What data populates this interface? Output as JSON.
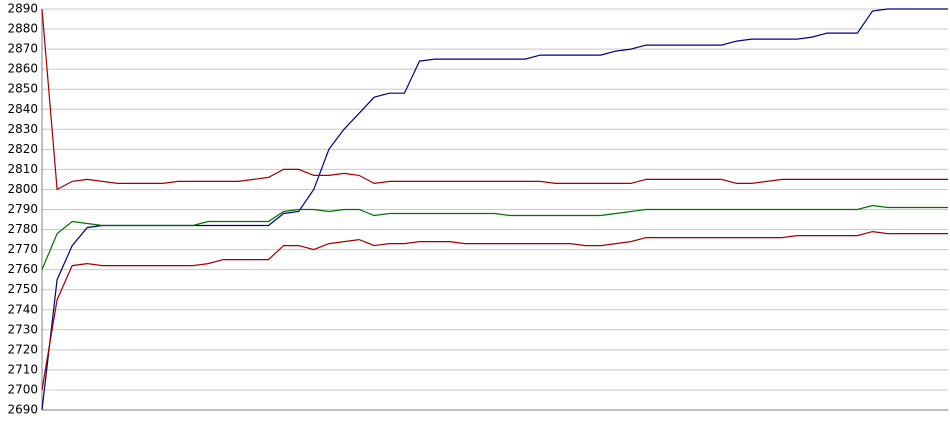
{
  "chart_data": {
    "type": "line",
    "categories": [
      null,
      null,
      null,
      null,
      null,
      null,
      null,
      null,
      null,
      null,
      null,
      null,
      null,
      null,
      null,
      null,
      null,
      null,
      null,
      null,
      null,
      null,
      null,
      null,
      null,
      null,
      null,
      null,
      null,
      null,
      null,
      null,
      null,
      null,
      null,
      null,
      null,
      null,
      null,
      null,
      null,
      null,
      null,
      null,
      null,
      null,
      null,
      null,
      null,
      null,
      null,
      null,
      null,
      null,
      null,
      null,
      null,
      null,
      null,
      null,
      null
    ],
    "series": [
      {
        "color": "#000080",
        "values": [
          2690,
          2755,
          2772,
          2781,
          2782,
          2782,
          2782,
          2782,
          2782,
          2782,
          2782,
          2782,
          2782,
          2782,
          2782,
          2782,
          2788,
          2789,
          2800,
          2820,
          2830,
          2838,
          2846,
          2848,
          2848,
          2864,
          2865,
          2865,
          2865,
          2865,
          2865,
          2865,
          2865,
          2867,
          2867,
          2867,
          2867,
          2867,
          2869,
          2870,
          2872,
          2872,
          2872,
          2872,
          2872,
          2872,
          2874,
          2875,
          2875,
          2875,
          2875,
          2876,
          2878,
          2878,
          2878,
          2889,
          2890,
          2890,
          2890,
          2890,
          2890
        ]
      },
      {
        "color": "#a00000",
        "values": [
          2890,
          2800,
          2804,
          2805,
          2804,
          2803,
          2803,
          2803,
          2803,
          2804,
          2804,
          2804,
          2804,
          2804,
          2805,
          2806,
          2810,
          2810,
          2807,
          2807,
          2808,
          2807,
          2803,
          2804,
          2804,
          2804,
          2804,
          2804,
          2804,
          2804,
          2804,
          2804,
          2804,
          2804,
          2803,
          2803,
          2803,
          2803,
          2803,
          2803,
          2805,
          2805,
          2805,
          2805,
          2805,
          2805,
          2803,
          2803,
          2804,
          2805,
          2805,
          2805,
          2805,
          2805,
          2805,
          2805,
          2805,
          2805,
          2805,
          2805,
          2805
        ]
      },
      {
        "color": "#007000",
        "values": [
          2760,
          2778,
          2784,
          2783,
          2782,
          2782,
          2782,
          2782,
          2782,
          2782,
          2782,
          2784,
          2784,
          2784,
          2784,
          2784,
          2789,
          2790,
          2790,
          2789,
          2790,
          2790,
          2787,
          2788,
          2788,
          2788,
          2788,
          2788,
          2788,
          2788,
          2788,
          2787,
          2787,
          2787,
          2787,
          2787,
          2787,
          2787,
          2788,
          2789,
          2790,
          2790,
          2790,
          2790,
          2790,
          2790,
          2790,
          2790,
          2790,
          2790,
          2790,
          2790,
          2790,
          2790,
          2790,
          2792,
          2791,
          2791,
          2791,
          2791,
          2791
        ]
      },
      {
        "color": "#a00000",
        "values": [
          2700,
          2745,
          2762,
          2763,
          2762,
          2762,
          2762,
          2762,
          2762,
          2762,
          2762,
          2763,
          2765,
          2765,
          2765,
          2765,
          2772,
          2772,
          2770,
          2773,
          2774,
          2775,
          2772,
          2773,
          2773,
          2774,
          2774,
          2774,
          2773,
          2773,
          2773,
          2773,
          2773,
          2773,
          2773,
          2773,
          2772,
          2772,
          2773,
          2774,
          2776,
          2776,
          2776,
          2776,
          2776,
          2776,
          2776,
          2776,
          2776,
          2776,
          2777,
          2777,
          2777,
          2777,
          2777,
          2779,
          2778,
          2778,
          2778,
          2778,
          2778
        ]
      }
    ],
    "ylim": [
      2690,
      2890
    ],
    "yticks": [
      2690,
      2700,
      2710,
      2720,
      2730,
      2740,
      2750,
      2760,
      2770,
      2780,
      2790,
      2800,
      2810,
      2820,
      2830,
      2840,
      2850,
      2860,
      2870,
      2880,
      2890
    ],
    "grid": true
  }
}
